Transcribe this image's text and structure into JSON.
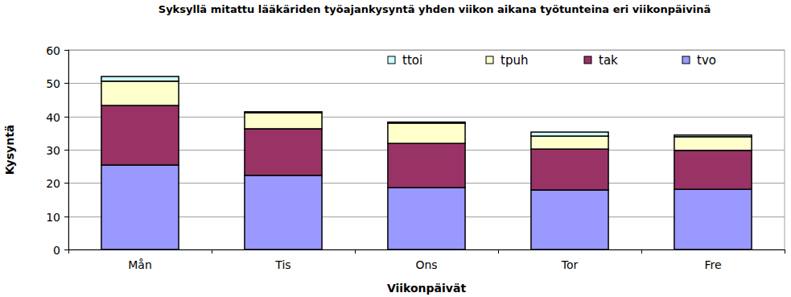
{
  "chart_data": {
    "type": "bar",
    "title": "Syksyllä mitattu lääkäriden työajankysyntä yhden viikon aikana työtunteina eri viikonpäivinä",
    "x_label": "Viikonpäivät",
    "y_label": "Kysyntä",
    "categories": [
      "Mån",
      "Tis",
      "Ons",
      "Tor",
      "Fre"
    ],
    "series": [
      {
        "name": "tvo",
        "color": "#9999ff",
        "values": [
          25.4,
          22.3,
          18.6,
          17.9,
          18.1
        ]
      },
      {
        "name": "tak",
        "color": "#993366",
        "values": [
          17.9,
          14.0,
          13.3,
          12.3,
          11.7
        ]
      },
      {
        "name": "tpuh",
        "color": "#ffffcc",
        "values": [
          7.3,
          4.8,
          6.1,
          3.9,
          4.1
        ]
      },
      {
        "name": "ttoi",
        "color": "#ccffff",
        "values": [
          1.4,
          0.3,
          0.3,
          1.2,
          0.5
        ]
      }
    ],
    "ylim": [
      0,
      60
    ],
    "yticks": [
      0,
      10,
      20,
      30,
      40,
      50,
      60
    ],
    "stacked": true,
    "grid": true,
    "legend": "top-right"
  }
}
